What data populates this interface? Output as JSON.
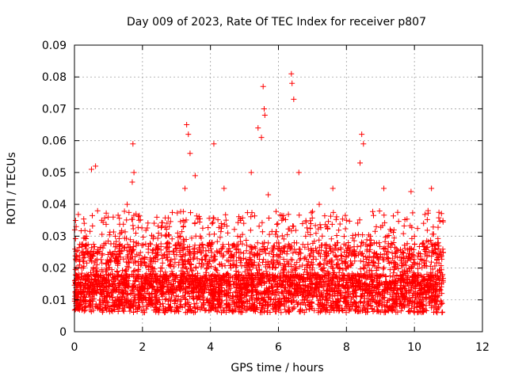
{
  "chart_data": {
    "type": "scatter",
    "title": "Day 009 of 2023, Rate Of TEC Index for receiver p807",
    "xlabel": "GPS time / hours",
    "ylabel": "ROTI / TECUs",
    "xlim": [
      0,
      12
    ],
    "ylim": [
      0,
      0.09
    ],
    "x_ticks": [
      "0",
      "2",
      "4",
      "6",
      "8",
      "10",
      "12"
    ],
    "y_ticks": [
      "0",
      "0.01",
      "0.02",
      "0.03",
      "0.04",
      "0.05",
      "0.06",
      "0.07",
      "0.08",
      "0.09"
    ],
    "grid": true,
    "marker": "+",
    "color": "#ff0000",
    "series": [
      {
        "name": "ROTI",
        "x": [
          0.05,
          0.12,
          0.2,
          0.35,
          0.5,
          0.62,
          0.68,
          0.8,
          1.0,
          1.2,
          1.4,
          1.55,
          1.7,
          1.72,
          1.75,
          1.9,
          2.1,
          2.3,
          2.5,
          2.7,
          2.9,
          3.1,
          3.25,
          3.3,
          3.35,
          3.4,
          3.55,
          3.7,
          3.9,
          4.1,
          4.2,
          4.4,
          4.6,
          4.8,
          5.0,
          5.2,
          5.4,
          5.5,
          5.55,
          5.58,
          5.6,
          5.7,
          5.9,
          6.1,
          6.3,
          6.38,
          6.4,
          6.45,
          6.6,
          6.8,
          7.0,
          7.2,
          7.4,
          7.6,
          7.8,
          8.0,
          8.2,
          8.4,
          8.45,
          8.5,
          8.7,
          8.9,
          9.1,
          9.2,
          9.4,
          9.6,
          9.8,
          9.9,
          10.0,
          10.2,
          10.4,
          10.5,
          10.55,
          10.7,
          10.8
        ],
        "y": [
          0.033,
          0.018,
          0.012,
          0.03,
          0.051,
          0.052,
          0.025,
          0.035,
          0.02,
          0.03,
          0.015,
          0.04,
          0.047,
          0.059,
          0.05,
          0.035,
          0.012,
          0.02,
          0.01,
          0.03,
          0.015,
          0.025,
          0.045,
          0.065,
          0.062,
          0.056,
          0.049,
          0.03,
          0.02,
          0.059,
          0.025,
          0.045,
          0.02,
          0.03,
          0.015,
          0.05,
          0.064,
          0.061,
          0.077,
          0.07,
          0.068,
          0.043,
          0.02,
          0.035,
          0.012,
          0.081,
          0.078,
          0.073,
          0.05,
          0.03,
          0.02,
          0.04,
          0.025,
          0.045,
          0.02,
          0.035,
          0.015,
          0.053,
          0.062,
          0.059,
          0.03,
          0.02,
          0.045,
          0.03,
          0.02,
          0.025,
          0.015,
          0.044,
          0.03,
          0.015,
          0.038,
          0.045,
          0.025,
          0.028,
          0.015
        ]
      }
    ]
  }
}
